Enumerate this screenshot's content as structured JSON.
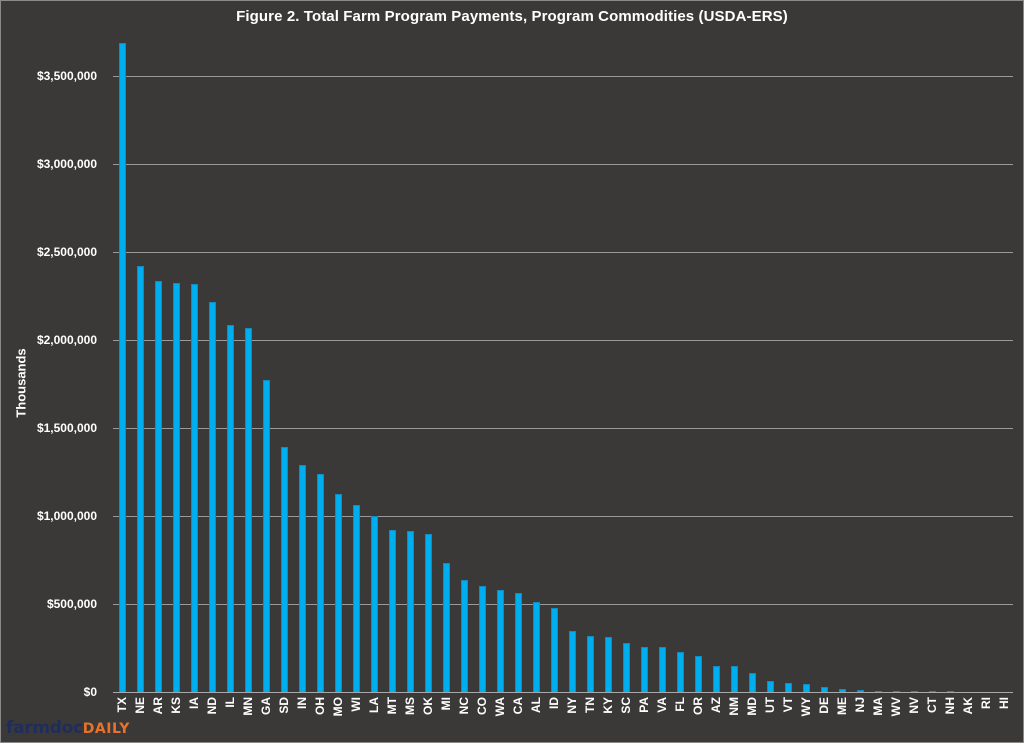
{
  "chart_data": {
    "type": "bar",
    "title": "Figure  2. Total Farm Program Payments,  Program  Commodities  (USDA-ERS)",
    "xlabel": "",
    "ylabel": "Thousands",
    "ylim": [
      0,
      3700000
    ],
    "yticks": [
      0,
      500000,
      1000000,
      1500000,
      2000000,
      2500000,
      3000000,
      3500000
    ],
    "ytick_labels": [
      "$0",
      "$500,000",
      "$1,000,000",
      "$1,500,000",
      "$2,000,000",
      "$2,500,000",
      "$3,000,000",
      "$3,500,000"
    ],
    "grid": true,
    "legend": null,
    "bar_color": "#00aeef",
    "categories": [
      "TX",
      "NE",
      "AR",
      "KS",
      "IA",
      "ND",
      "IL",
      "MN",
      "GA",
      "SD",
      "IN",
      "OH",
      "MO",
      "WI",
      "LA",
      "MT",
      "MS",
      "OK",
      "MI",
      "NC",
      "CO",
      "WA",
      "CA",
      "AL",
      "ID",
      "NY",
      "TN",
      "KY",
      "SC",
      "PA",
      "VA",
      "FL",
      "OR",
      "AZ",
      "NM",
      "MD",
      "UT",
      "VT",
      "WY",
      "DE",
      "ME",
      "NJ",
      "MA",
      "WV",
      "NV",
      "CT",
      "NH",
      "AK",
      "RI",
      "HI"
    ],
    "values": [
      3690000,
      2420000,
      2335000,
      2325000,
      2320000,
      2215000,
      2085000,
      2070000,
      1770000,
      1390000,
      1290000,
      1240000,
      1125000,
      1065000,
      1000000,
      920000,
      915000,
      895000,
      733000,
      634000,
      605000,
      582000,
      565000,
      511000,
      480000,
      349000,
      321000,
      312000,
      278000,
      256000,
      256000,
      227000,
      205000,
      145000,
      145000,
      108000,
      65000,
      51000,
      45000,
      31000,
      17000,
      14000,
      5000,
      4000,
      4000,
      3000,
      3000,
      0,
      0,
      0
    ]
  },
  "watermark": {
    "part1": "farmdoc",
    "part2": "DAILY",
    "color1": "#1e2d5c",
    "color2": "#e8722a"
  }
}
